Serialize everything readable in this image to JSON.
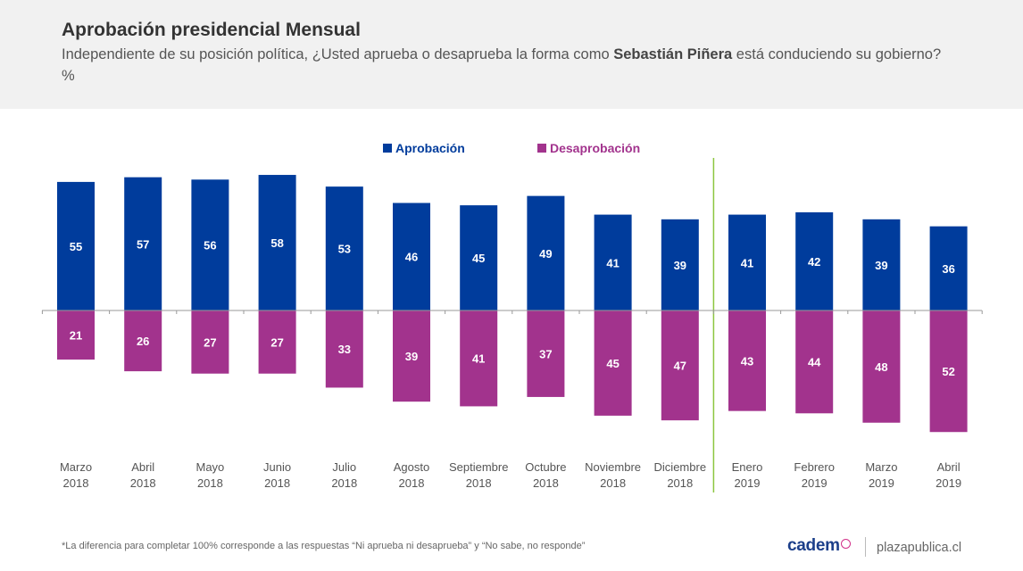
{
  "header": {
    "title": "Aprobación presidencial Mensual",
    "subtitle_pre": "Independiente de su posición política, ¿Usted aprueba o desaprueba la forma como ",
    "subtitle_bold": "Sebastián Piñera",
    "subtitle_post": " está conduciendo su gobierno? %"
  },
  "chart_data": {
    "type": "bar",
    "title": "Aprobación presidencial Mensual",
    "categories": [
      [
        "Marzo",
        "2018"
      ],
      [
        "Abril",
        "2018"
      ],
      [
        "Mayo",
        "2018"
      ],
      [
        "Junio",
        "2018"
      ],
      [
        "Julio",
        "2018"
      ],
      [
        "Agosto",
        "2018"
      ],
      [
        "Septiembre",
        "2018"
      ],
      [
        "Octubre",
        "2018"
      ],
      [
        "Noviembre",
        "2018"
      ],
      [
        "Diciembre",
        "2018"
      ],
      [
        "Enero",
        "2019"
      ],
      [
        "Febrero",
        "2019"
      ],
      [
        "Marzo",
        "2019"
      ],
      [
        "Abril",
        "2019"
      ]
    ],
    "series": [
      {
        "name": "Aprobación",
        "color": "#003c9c",
        "direction": "up",
        "values": [
          55,
          57,
          56,
          58,
          53,
          46,
          45,
          49,
          41,
          39,
          41,
          42,
          39,
          36
        ]
      },
      {
        "name": "Desaprobación",
        "color": "#a2338d",
        "direction": "down",
        "values": [
          21,
          26,
          27,
          27,
          33,
          39,
          41,
          37,
          45,
          47,
          43,
          44,
          48,
          52
        ]
      }
    ],
    "divider_before_index": 10,
    "divider_color": "#8cc63f",
    "label_color": "#ffffff",
    "axis_color": "#999999",
    "xlabel": "",
    "ylabel": ""
  },
  "footer": {
    "note": "*La diferencia para completar 100% corresponde a las respuestas “Ni aprueba ni desaprueba” y “No sabe, no responde”",
    "brand": "cadem",
    "site": "plazapublica.cl"
  }
}
